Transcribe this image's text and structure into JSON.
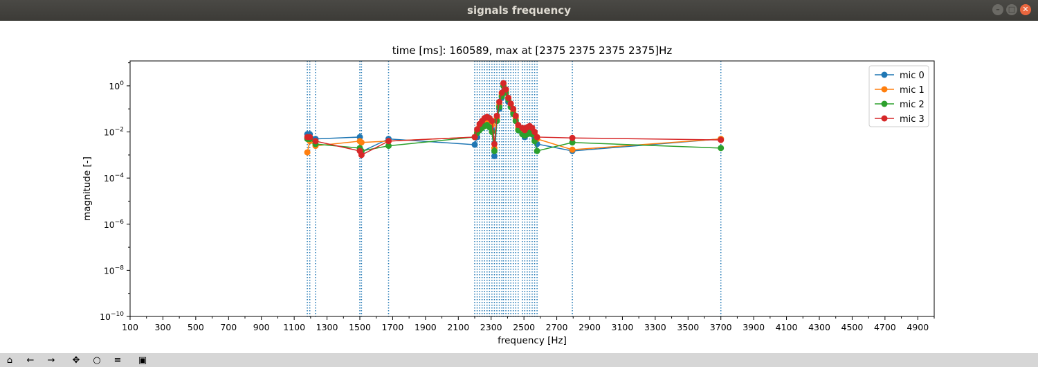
{
  "window": {
    "title": "signals frequency"
  },
  "window_buttons": {
    "minimize": "–",
    "maximize": "□",
    "close": "✕"
  },
  "toolbar": [
    {
      "name": "home-icon",
      "glyph": "⌂"
    },
    {
      "name": "back-icon",
      "glyph": "←"
    },
    {
      "name": "forward-icon",
      "glyph": "→"
    },
    {
      "name": "pan-icon",
      "glyph": "✥"
    },
    {
      "name": "zoom-icon",
      "glyph": "○"
    },
    {
      "name": "configure-subplots-icon",
      "glyph": "≡"
    },
    {
      "name": "save-icon",
      "glyph": "▣"
    }
  ],
  "colors": {
    "mic0": "#1f77b4",
    "mic1": "#ff7f0e",
    "mic2": "#2ca02c",
    "mic3": "#d62728"
  },
  "chart_data": {
    "type": "line",
    "title": "time [ms]: 160589, max at [2375 2375 2375 2375]Hz",
    "xlabel": "frequency [Hz]",
    "ylabel": "magnitude [-]",
    "xlim": [
      100,
      5000
    ],
    "ylim": [
      1e-10,
      12
    ],
    "yscale": "log",
    "grid": false,
    "legend_position": "top-right",
    "x_ticks": [
      100,
      300,
      500,
      700,
      900,
      1100,
      1300,
      1500,
      1700,
      1900,
      2100,
      2300,
      2500,
      2700,
      2900,
      3100,
      3300,
      3500,
      3700,
      3900,
      4100,
      4300,
      4500,
      4700,
      4900
    ],
    "y_ticks": [
      {
        "value": 1,
        "base": "10",
        "exp": "0"
      },
      {
        "value": 0.01,
        "base": "10",
        "exp": "−2"
      },
      {
        "value": 0.0001,
        "base": "10",
        "exp": "−4"
      },
      {
        "value": 1e-06,
        "base": "10",
        "exp": "−6"
      },
      {
        "value": 1e-08,
        "base": "10",
        "exp": "−8"
      },
      {
        "value": 1e-10,
        "base": "10",
        "exp": "−10"
      }
    ],
    "vlines": [
      1180,
      1195,
      1230,
      1500,
      1510,
      1675,
      2200,
      2215,
      2230,
      2245,
      2260,
      2275,
      2290,
      2305,
      2320,
      2335,
      2350,
      2365,
      2375,
      2390,
      2405,
      2420,
      2435,
      2450,
      2465,
      2490,
      2505,
      2520,
      2535,
      2550,
      2565,
      2580,
      2795,
      3700
    ],
    "x": [
      1180,
      1195,
      1230,
      1500,
      1510,
      1675,
      2200,
      2215,
      2230,
      2245,
      2260,
      2275,
      2290,
      2305,
      2320,
      2335,
      2350,
      2365,
      2375,
      2390,
      2405,
      2420,
      2435,
      2450,
      2465,
      2490,
      2505,
      2520,
      2535,
      2550,
      2565,
      2580,
      2795,
      3700
    ],
    "series": [
      {
        "name": "mic 0",
        "values": [
          0.008,
          0.008,
          0.005,
          0.006,
          0.0014,
          0.005,
          0.0028,
          0.006,
          0.012,
          0.016,
          0.02,
          0.025,
          0.018,
          0.012,
          0.0009,
          0.03,
          0.1,
          0.3,
          1.0,
          0.5,
          0.2,
          0.12,
          0.07,
          0.03,
          0.012,
          0.009,
          0.006,
          0.01,
          0.012,
          0.008,
          0.006,
          0.003,
          0.0015,
          0.005
        ]
      },
      {
        "name": "mic 1",
        "values": [
          0.0013,
          0.004,
          0.0025,
          0.004,
          0.0035,
          0.004,
          0.006,
          0.01,
          0.018,
          0.025,
          0.03,
          0.035,
          0.03,
          0.02,
          0.002,
          0.04,
          0.15,
          0.4,
          1.2,
          0.6,
          0.3,
          0.15,
          0.08,
          0.04,
          0.015,
          0.012,
          0.01,
          0.014,
          0.016,
          0.012,
          0.008,
          0.005,
          0.0017,
          0.005
        ]
      },
      {
        "name": "mic 2",
        "values": [
          0.005,
          0.005,
          0.003,
          0.002,
          0.0015,
          0.0025,
          0.006,
          0.009,
          0.012,
          0.015,
          0.018,
          0.02,
          0.016,
          0.01,
          0.0015,
          0.03,
          0.12,
          0.35,
          1.0,
          0.5,
          0.25,
          0.12,
          0.06,
          0.03,
          0.012,
          0.008,
          0.007,
          0.008,
          0.01,
          0.008,
          0.004,
          0.0015,
          0.0035,
          0.002
        ]
      },
      {
        "name": "mic 3",
        "values": [
          0.006,
          0.006,
          0.004,
          0.0015,
          0.001,
          0.004,
          0.006,
          0.013,
          0.022,
          0.03,
          0.04,
          0.045,
          0.04,
          0.03,
          0.003,
          0.05,
          0.2,
          0.5,
          1.3,
          0.7,
          0.3,
          0.17,
          0.1,
          0.05,
          0.02,
          0.015,
          0.012,
          0.016,
          0.018,
          0.015,
          0.01,
          0.006,
          0.0055,
          0.0045
        ]
      }
    ]
  }
}
